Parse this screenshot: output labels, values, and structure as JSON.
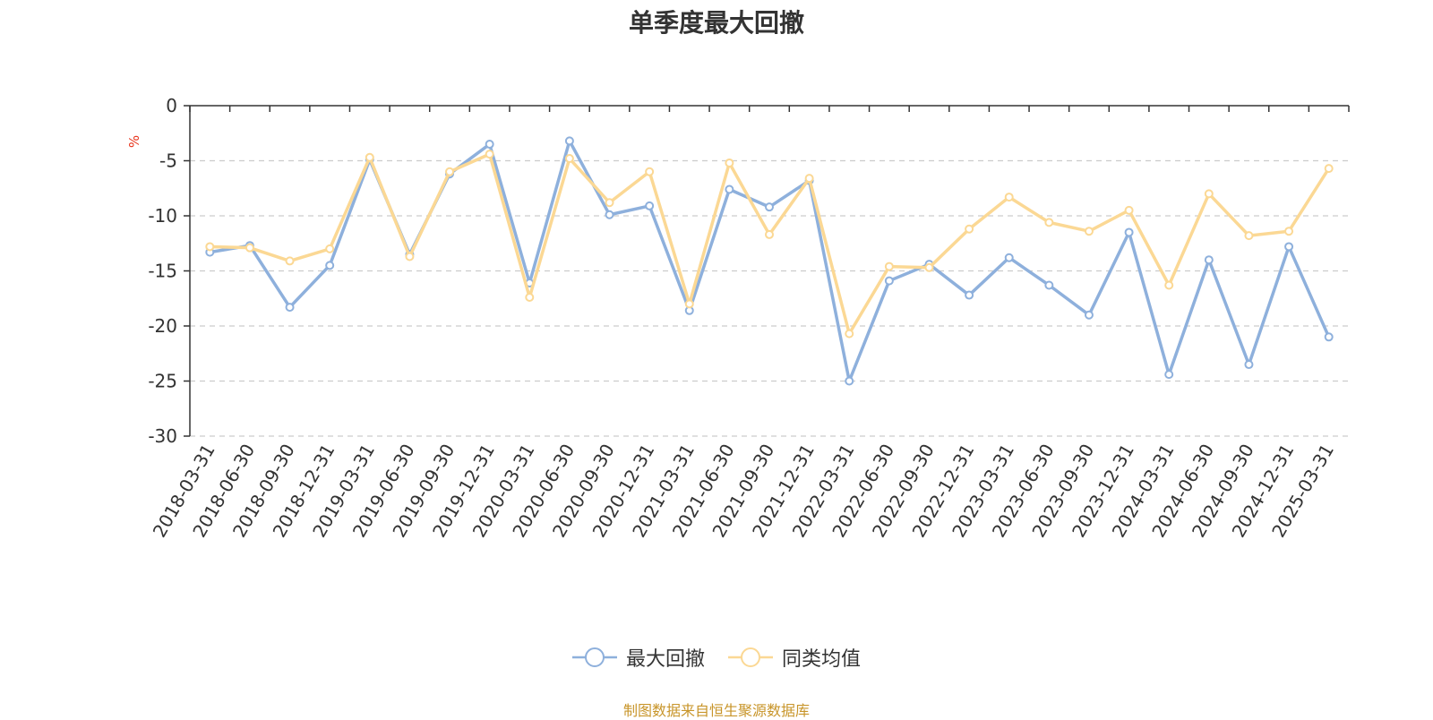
{
  "chart_data": {
    "type": "line",
    "title": "单季度最大回撤",
    "ylabel": "%",
    "ylim": [
      -30,
      0
    ],
    "yticks": [
      0,
      -5,
      -10,
      -15,
      -20,
      -25,
      -30
    ],
    "grid": true,
    "legend_position": "bottom",
    "categories": [
      "2018-03-31",
      "2018-06-30",
      "2018-09-30",
      "2018-12-31",
      "2019-03-31",
      "2019-06-30",
      "2019-09-30",
      "2019-12-31",
      "2020-03-31",
      "2020-06-30",
      "2020-09-30",
      "2020-12-31",
      "2021-03-31",
      "2021-06-30",
      "2021-09-30",
      "2021-12-31",
      "2022-03-31",
      "2022-06-30",
      "2022-09-30",
      "2022-12-31",
      "2023-03-31",
      "2023-06-30",
      "2023-09-30",
      "2023-12-31",
      "2024-03-31",
      "2024-06-30",
      "2024-09-30",
      "2024-12-31",
      "2025-03-31"
    ],
    "series": [
      {
        "name": "最大回撤",
        "color": "#8eb0dc",
        "values": [
          -13.3,
          -12.7,
          -18.3,
          -14.5,
          -4.9,
          -13.5,
          -6.2,
          -3.5,
          -16.1,
          -3.2,
          -9.9,
          -9.1,
          -18.6,
          -7.6,
          -9.2,
          -6.8,
          -25.0,
          -15.9,
          -14.4,
          -17.2,
          -13.8,
          -16.3,
          -19.0,
          -11.5,
          -24.4,
          -14.0,
          -23.5,
          -12.8,
          -21.0
        ]
      },
      {
        "name": "同类均值",
        "color": "#fbd894",
        "values": [
          -12.8,
          -12.9,
          -14.1,
          -13.0,
          -4.7,
          -13.7,
          -6.0,
          -4.4,
          -17.4,
          -4.8,
          -8.8,
          -6.0,
          -18.0,
          -5.2,
          -11.7,
          -6.6,
          -20.7,
          -14.6,
          -14.7,
          -11.2,
          -8.3,
          -10.6,
          -11.4,
          -9.5,
          -16.3,
          -8.0,
          -11.8,
          -11.4,
          -5.7
        ]
      }
    ]
  },
  "source_note": "制图数据来自恒生聚源数据库",
  "colors": {
    "axis": "#333333",
    "grid": "#cccccc",
    "unit_label": "#e8341c",
    "source": "#c8952a"
  }
}
